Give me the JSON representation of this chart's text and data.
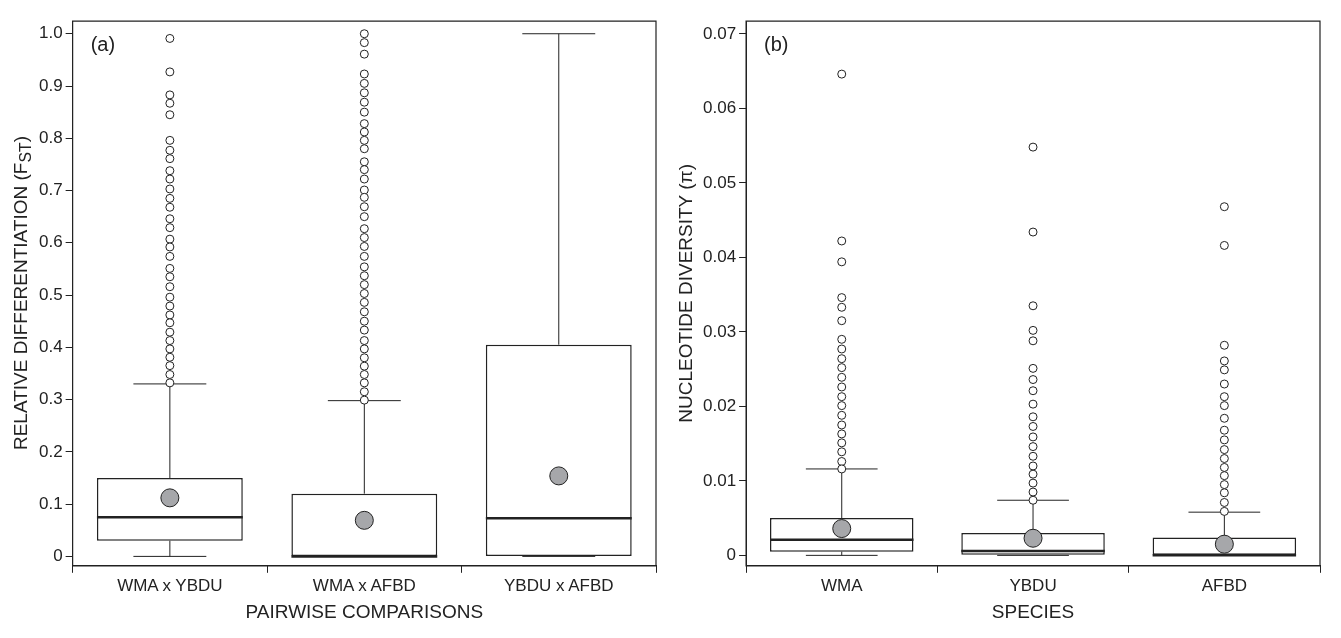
{
  "chart_data": [
    {
      "type": "box",
      "categories": [
        "WMA x YBDU",
        "WMA x AFBD",
        "YBDU x AFBD"
      ],
      "xlabel": "PAIRWISE COMPARISONS",
      "ylabel": "RELATIVE DIFFERENTIATION (F$_{ST}$)",
      "annotations": [
        "(a)"
      ],
      "ylim": [
        -0.018,
        1.024
      ],
      "yticks": [
        0,
        0.1,
        0.2,
        0.3,
        0.4,
        0.5,
        0.6,
        0.7,
        0.8,
        0.9,
        {
          "value": 1,
          "label": "1.0"
        }
      ],
      "grid": false,
      "legend": false,
      "boxes": [
        {
          "low": 0,
          "q1": 0.03,
          "median": 0.075,
          "q3": 0.15,
          "high": 0.33,
          "mean": 0.112,
          "outliers": [
            0.991,
            0.927,
            0.883,
            0.867,
            0.845,
            0.796,
            0.777,
            0.761,
            0.738,
            0.722,
            0.703,
            0.685,
            0.668,
            0.646,
            0.629,
            0.607,
            0.592,
            0.574,
            0.551,
            0.535,
            0.516,
            0.496,
            0.479,
            0.462,
            0.447,
            0.429,
            0.413,
            0.397,
            0.381,
            0.365,
            0.348,
            0.332
          ]
        },
        {
          "low": 0,
          "q1": 0,
          "median": 0,
          "q3": 0.12,
          "high": 0.298,
          "mean": 0.069,
          "outliers": [
            1.0,
            0.983,
            0.961,
            0.923,
            0.905,
            0.887,
            0.869,
            0.85,
            0.828,
            0.812,
            0.796,
            0.78,
            0.755,
            0.74,
            0.722,
            0.701,
            0.687,
            0.669,
            0.65,
            0.627,
            0.61,
            0.593,
            0.574,
            0.554,
            0.537,
            0.52,
            0.503,
            0.486,
            0.468,
            0.45,
            0.433,
            0.413,
            0.397,
            0.38,
            0.364,
            0.348,
            0.332,
            0.315,
            0.299
          ]
        },
        {
          "low": 0,
          "q1": 0,
          "median": 0.073,
          "q3": 0.405,
          "high": 1.0,
          "mean": 0.154
        }
      ]
    },
    {
      "type": "box",
      "categories": [
        "WMA",
        "YBDU",
        "AFBD"
      ],
      "xlabel": "SPECIES",
      "ylabel": "NUCLEOTIDE DIVERSITY (π)",
      "annotations": [
        "(b)"
      ],
      "ylim": [
        -0.0014,
        0.0717
      ],
      "yticks": [
        0,
        0.01,
        0.02,
        0.03,
        0.04,
        0.05,
        0.06,
        0.07
      ],
      "grid": false,
      "legend": false,
      "boxes": [
        {
          "low": 0,
          "q1": 0.0005,
          "median": 0.0021,
          "q3": 0.005,
          "high": 0.0116,
          "mean": 0.0036,
          "outliers": [
            0.0646,
            0.0422,
            0.0394,
            0.0346,
            0.0333,
            0.0315,
            0.029,
            0.0277,
            0.0264,
            0.0252,
            0.0239,
            0.0226,
            0.0213,
            0.0201,
            0.0188,
            0.0175,
            0.0163,
            0.0151,
            0.0139,
            0.0126,
            0.0116
          ]
        },
        {
          "low": 0,
          "q1": 0,
          "median": 0.0006,
          "q3": 0.003,
          "high": 0.0074,
          "mean": 0.0023,
          "outliers": [
            0.0548,
            0.0434,
            0.0335,
            0.0302,
            0.0288,
            0.0251,
            0.0236,
            0.0221,
            0.0203,
            0.0186,
            0.0173,
            0.0159,
            0.0146,
            0.0133,
            0.012,
            0.0109,
            0.0097,
            0.0085,
            0.0074
          ]
        },
        {
          "low": 0,
          "q1": 0,
          "median": 0,
          "q3": 0.0024,
          "high": 0.0058,
          "mean": 0.0015,
          "outliers": [
            0.0468,
            0.0416,
            0.0282,
            0.0261,
            0.0249,
            0.023,
            0.0213,
            0.0201,
            0.0184,
            0.0168,
            0.0155,
            0.0142,
            0.013,
            0.0118,
            0.0107,
            0.0095,
            0.0084,
            0.0071,
            0.0059
          ]
        }
      ]
    }
  ]
}
